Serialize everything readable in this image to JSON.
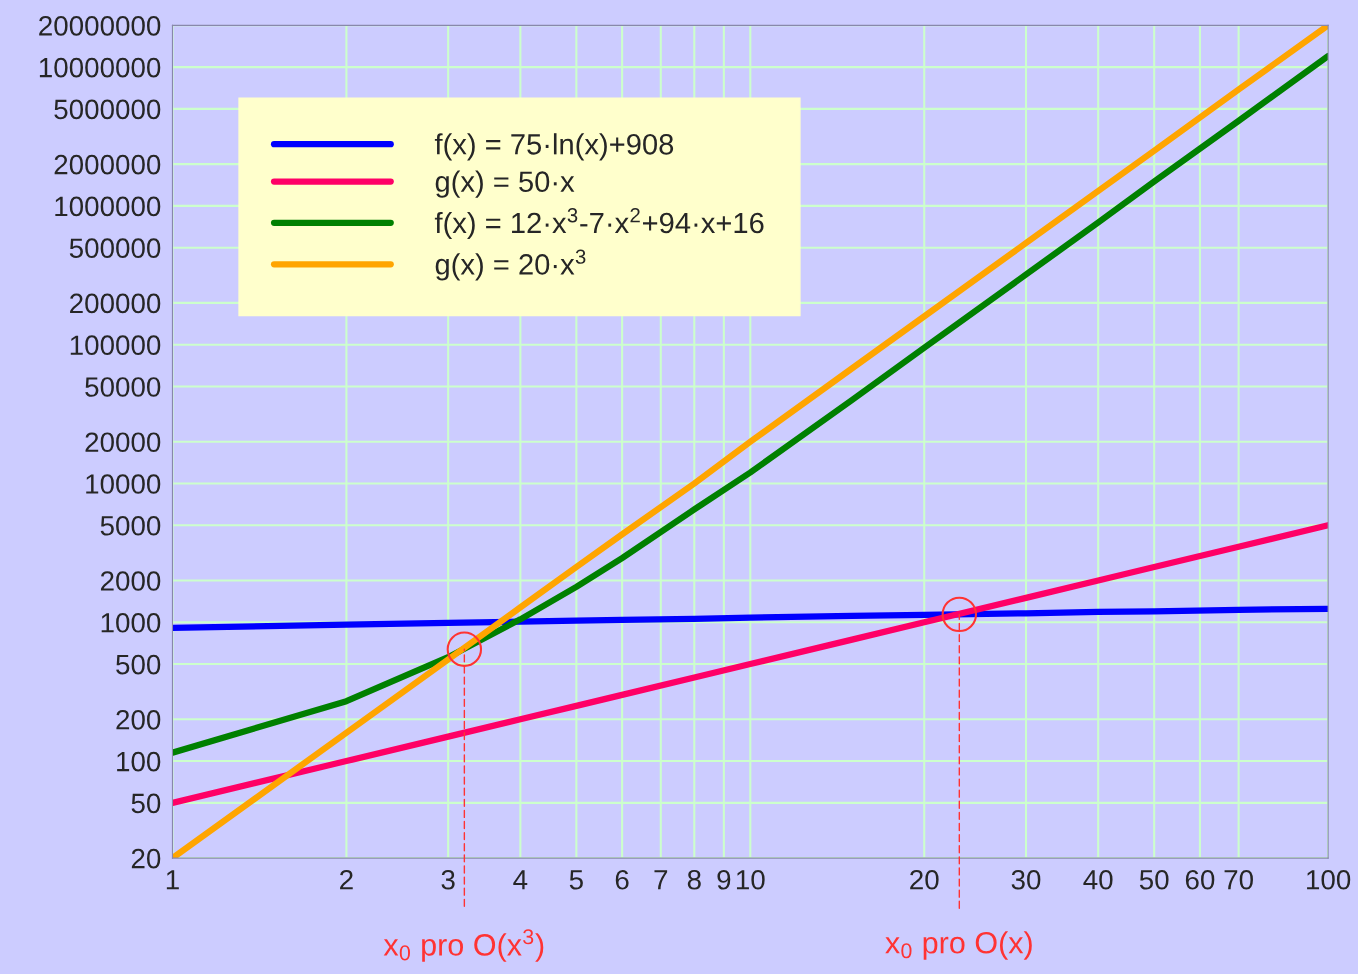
{
  "chart_data": {
    "type": "line",
    "log": "xy",
    "x": [
      1,
      2,
      3,
      4,
      5,
      6,
      8,
      10,
      15,
      20,
      30,
      40,
      50,
      70,
      100
    ],
    "series": [
      {
        "name": "f(x) = 75·ln(x)+908",
        "color": "#0000ff",
        "values": [
          910,
          960,
          990,
          1010,
          1030,
          1040,
          1060,
          1080,
          1110,
          1130,
          1160,
          1190,
          1200,
          1230,
          1250
        ]
      },
      {
        "name": "g(x) = 50·x",
        "color": "#ff0066",
        "values": [
          50,
          100,
          150,
          200,
          250,
          300,
          400,
          500,
          750,
          1000,
          1500,
          2000,
          2500,
          3500,
          5000
        ]
      },
      {
        "name": "f(x) = 12·x$^{3}$-7·x$^{2}$+94·x+16",
        "color": "#008000",
        "values": [
          115,
          270,
          560,
          1050,
          1800,
          2900,
          6500,
          12000,
          40000,
          95000,
          320000,
          760000,
          1500000,
          4100000,
          12000000
        ]
      },
      {
        "name": "g(x) = 20·x$^{3}$",
        "color": "#ffa500",
        "values": [
          20,
          160,
          540,
          1280,
          2500,
          4300,
          10000,
          20000,
          67500,
          160000,
          540000,
          1280000,
          2500000,
          6900000,
          20000000
        ]
      }
    ],
    "xlim": [
      1,
      100
    ],
    "xticks": [
      1,
      2,
      3,
      4,
      5,
      6,
      7,
      8,
      9,
      10,
      20,
      30,
      40,
      50,
      60,
      70,
      100
    ],
    "ylim": [
      20,
      20000000
    ],
    "yticks": [
      20,
      50,
      100,
      200,
      500,
      1000,
      2000,
      5000,
      10000,
      20000,
      50000,
      100000,
      200000,
      500000,
      1000000,
      2000000,
      5000000,
      10000000,
      20000000
    ],
    "grid": true,
    "legend": "top left",
    "marker": "none",
    "line_style": "solid",
    "annotations": [
      {
        "text": "x$_{0}$ pro O(x$^{3}$)",
        "x": 3.2,
        "y": 640
      },
      {
        "text": "x$_{0}$ pro O(x)",
        "x": 23,
        "y": 1140
      }
    ]
  }
}
